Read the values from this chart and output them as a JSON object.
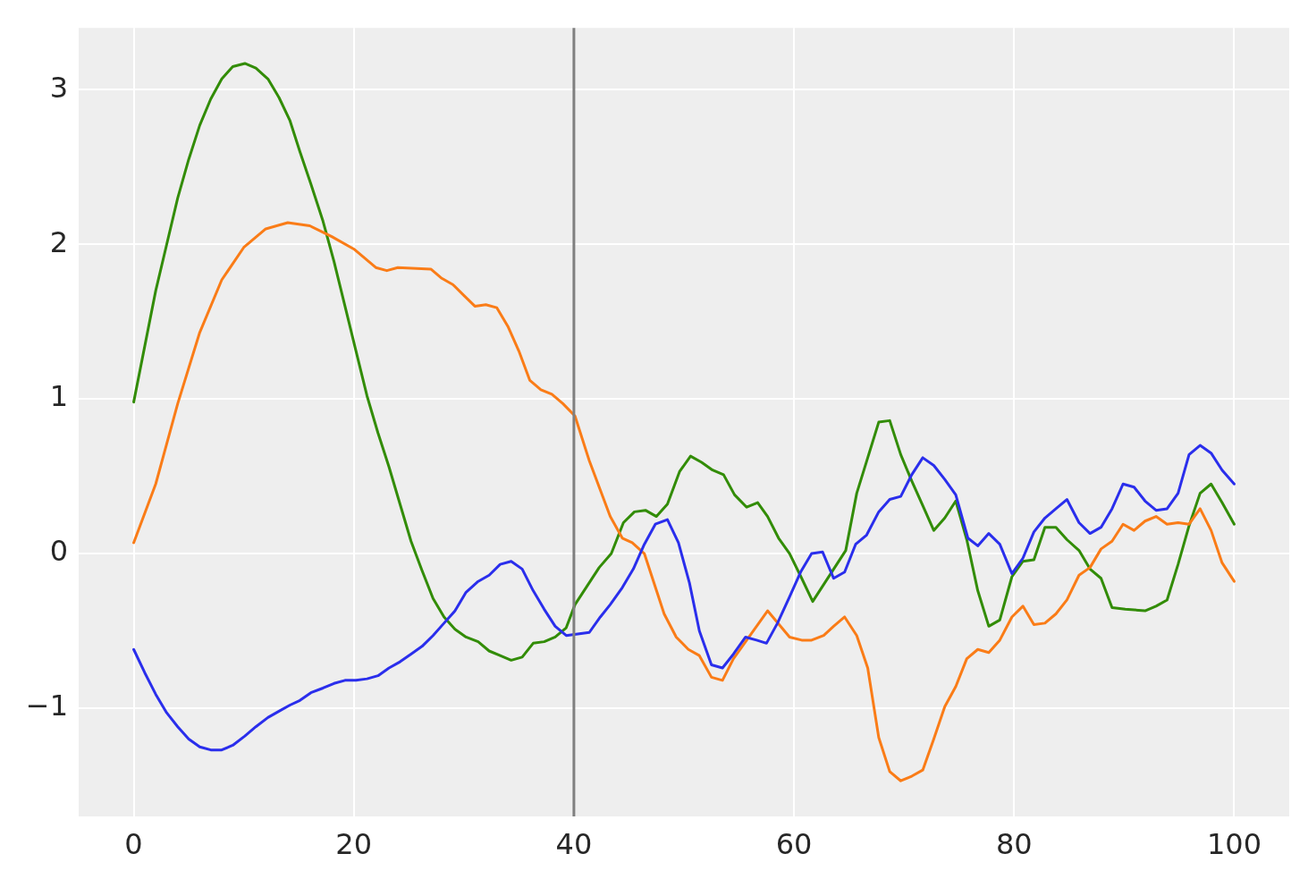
{
  "chart_data": {
    "type": "line",
    "xlim": [
      -5,
      105
    ],
    "xticks": [
      0,
      20,
      40,
      60,
      80,
      100
    ],
    "ylim": [
      -1.7,
      3.4
    ],
    "yticks": [
      {
        "value": -1,
        "label": "−1"
      },
      0,
      1,
      2,
      3
    ],
    "grid": true,
    "marker": "none",
    "line_style": "solid",
    "ref_lines": [
      {
        "axis": "x",
        "value": 40,
        "color": "#7f7f7f"
      }
    ],
    "series": [
      {
        "color": "#2a2eec",
        "x": [
          0,
          1,
          2,
          3,
          4,
          5,
          6,
          7,
          8,
          9,
          10.1,
          11.1,
          12.2,
          13.2,
          14.2,
          15.1,
          16.1,
          17.2,
          18.2,
          19.2,
          20.2,
          21.2,
          22.2,
          23.2,
          24.2,
          25.2,
          26.2,
          27.2,
          28.2,
          29.2,
          30.2,
          31.3,
          32.3,
          33.3,
          34.3,
          35.3,
          36.3,
          37.3,
          38.3,
          39.3,
          41.4,
          42.4,
          43.3,
          44.4,
          45.4,
          46.4,
          47.4,
          48.5,
          49.5,
          50.5,
          51.4,
          52.5,
          53.5,
          54.5,
          55.6,
          56.6,
          57.5,
          58.5,
          59.6,
          60.6,
          61.6,
          62.6,
          63.6,
          64.6,
          65.6,
          66.6,
          67.7,
          68.7,
          69.7,
          70.7,
          71.7,
          72.7,
          73.7,
          74.7,
          75.8,
          76.7,
          77.7,
          78.7,
          79.8,
          80.8,
          81.8,
          82.8,
          83.8,
          84.8,
          85.9,
          86.9,
          87.9,
          88.9,
          89.9,
          90.9,
          91.9,
          92.9,
          93.9,
          94.9,
          95.9,
          96.9,
          97.9,
          98.9,
          100
        ],
        "values": [
          -0.62,
          -0.77,
          -0.91,
          -1.03,
          -1.12,
          -1.2,
          -1.25,
          -1.27,
          -1.27,
          -1.24,
          -1.18,
          -1.12,
          -1.06,
          -1.02,
          -0.98,
          -0.95,
          -0.9,
          -0.87,
          -0.84,
          -0.82,
          -0.82,
          -0.81,
          -0.79,
          -0.74,
          -0.7,
          -0.65,
          -0.6,
          -0.53,
          -0.45,
          -0.37,
          -0.25,
          -0.18,
          -0.14,
          -0.07,
          -0.05,
          -0.1,
          -0.24,
          -0.36,
          -0.47,
          -0.53,
          -0.51,
          -0.41,
          -0.33,
          -0.22,
          -0.1,
          0.06,
          0.19,
          0.22,
          0.07,
          -0.19,
          -0.5,
          -0.72,
          -0.74,
          -0.65,
          -0.54,
          -0.56,
          -0.58,
          -0.45,
          -0.28,
          -0.12,
          0,
          0.01,
          -0.16,
          -0.12,
          0.06,
          0.12,
          0.27,
          0.35,
          0.37,
          0.51,
          0.62,
          0.57,
          0.48,
          0.38,
          0.1,
          0.05,
          0.13,
          0.06,
          -0.13,
          -0.03,
          0.14,
          0.23,
          0.29,
          0.35,
          0.2,
          0.13,
          0.17,
          0.29,
          0.45,
          0.43,
          0.34,
          0.28,
          0.29,
          0.39,
          0.64,
          0.7,
          0.65,
          0.54,
          0.45
        ]
      },
      {
        "color": "#fa7c17",
        "x": [
          0,
          2,
          4,
          6,
          8,
          10,
          12,
          14,
          16,
          18,
          20,
          22,
          23,
          24,
          27,
          28,
          29,
          30,
          31,
          32,
          33,
          34,
          35,
          36,
          37,
          38,
          39,
          40.1,
          41.4,
          43.3,
          44.4,
          45.3,
          46.4,
          48.2,
          49.3,
          50.4,
          51.4,
          52.5,
          53.5,
          54.5,
          57.6,
          59.6,
          60.7,
          61.6,
          62.7,
          63.6,
          64.6,
          65.7,
          66.7,
          67.7,
          68.7,
          69.7,
          70.7,
          71.7,
          72.7,
          73.7,
          74.7,
          75.7,
          76.7,
          77.7,
          78.7,
          79.8,
          80.8,
          81.8,
          82.8,
          83.8,
          84.8,
          85.9,
          86.9,
          87.9,
          88.9,
          89.9,
          90.9,
          91.9,
          92.9,
          93.9,
          94.9,
          95.9,
          96.9,
          97.9,
          98.9,
          100
        ],
        "values": [
          0.07,
          0.45,
          0.97,
          1.43,
          1.77,
          1.98,
          2.1,
          2.14,
          2.12,
          2.05,
          1.97,
          1.85,
          1.83,
          1.85,
          1.84,
          1.78,
          1.74,
          1.67,
          1.6,
          1.61,
          1.59,
          1.47,
          1.31,
          1.12,
          1.06,
          1.03,
          0.97,
          0.89,
          0.6,
          0.24,
          0.1,
          0.07,
          0,
          -0.39,
          -0.54,
          -0.62,
          -0.66,
          -0.8,
          -0.82,
          -0.68,
          -0.37,
          -0.54,
          -0.56,
          -0.56,
          -0.53,
          -0.47,
          -0.41,
          -0.53,
          -0.74,
          -1.19,
          -1.41,
          -1.47,
          -1.44,
          -1.4,
          -1.2,
          -0.99,
          -0.86,
          -0.68,
          -0.62,
          -0.64,
          -0.56,
          -0.41,
          -0.34,
          -0.46,
          -0.45,
          -0.39,
          -0.3,
          -0.14,
          -0.09,
          0.03,
          0.08,
          0.19,
          0.15,
          0.21,
          0.24,
          0.19,
          0.2,
          0.19,
          0.29,
          0.15,
          -0.06,
          -0.18
        ]
      },
      {
        "color": "#328c06",
        "x": [
          0,
          1,
          2,
          3,
          4,
          5,
          6,
          7,
          8,
          9,
          10.1,
          11.1,
          12.2,
          13.2,
          14.2,
          15.1,
          16.1,
          17.2,
          18.2,
          19.2,
          20.2,
          21.2,
          22.2,
          23.2,
          24.2,
          25.2,
          26.2,
          27.2,
          28.2,
          29.2,
          30.2,
          31.3,
          32.3,
          33.3,
          34.3,
          35.3,
          36.3,
          37.3,
          38.3,
          39.3,
          40.1,
          41.2,
          42.3,
          43.4,
          44.5,
          45.5,
          46.5,
          47.5,
          48.5,
          49.6,
          50.6,
          51.6,
          52.6,
          53.6,
          54.6,
          55.7,
          56.7,
          57.6,
          58.6,
          59.6,
          60.7,
          61.7,
          62.7,
          63.7,
          64.7,
          65.7,
          66.7,
          67.7,
          68.7,
          69.7,
          70.7,
          71.7,
          72.7,
          73.7,
          74.7,
          75.7,
          76.7,
          77.7,
          78.7,
          79.8,
          80.8,
          81.8,
          82.8,
          83.8,
          84.8,
          85.9,
          86.9,
          87.9,
          88.9,
          90.1,
          91.9,
          92.9,
          93.9,
          94.9,
          95.9,
          96.9,
          97.9,
          98.9,
          100
        ],
        "values": [
          0.98,
          1.34,
          1.7,
          2,
          2.3,
          2.55,
          2.77,
          2.94,
          3.07,
          3.15,
          3.17,
          3.14,
          3.07,
          2.95,
          2.8,
          2.6,
          2.39,
          2.15,
          1.89,
          1.6,
          1.31,
          1.02,
          0.78,
          0.56,
          0.32,
          0.08,
          -0.11,
          -0.29,
          -0.41,
          -0.49,
          -0.54,
          -0.57,
          -0.63,
          -0.66,
          -0.69,
          -0.67,
          -0.58,
          -0.57,
          -0.54,
          -0.48,
          -0.33,
          -0.21,
          -0.09,
          0,
          0.2,
          0.27,
          0.28,
          0.24,
          0.32,
          0.53,
          0.63,
          0.59,
          0.54,
          0.51,
          0.38,
          0.3,
          0.33,
          0.24,
          0.1,
          0,
          -0.16,
          -0.31,
          -0.2,
          -0.09,
          0.02,
          0.39,
          0.62,
          0.85,
          0.86,
          0.64,
          0.47,
          0.31,
          0.15,
          0.23,
          0.34,
          0.09,
          -0.24,
          -0.47,
          -0.43,
          -0.15,
          -0.05,
          -0.04,
          0.17,
          0.17,
          0.09,
          0.02,
          -0.1,
          -0.16,
          -0.35,
          -0.36,
          -0.37,
          -0.34,
          -0.3,
          -0.07,
          0.18,
          0.39,
          0.45,
          0.33,
          0.19
        ]
      }
    ]
  }
}
